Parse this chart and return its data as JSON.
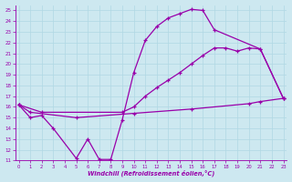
{
  "xlabel": "Windchill (Refroidissement éolien,°C)",
  "background_color": "#cde8f0",
  "line_color": "#9900aa",
  "grid_color": "#b0d8e4",
  "yticks": [
    11,
    12,
    13,
    14,
    15,
    16,
    17,
    18,
    19,
    20,
    21,
    22,
    23,
    24,
    25
  ],
  "xticks": [
    0,
    1,
    2,
    3,
    4,
    5,
    6,
    7,
    8,
    9,
    10,
    11,
    12,
    13,
    14,
    15,
    16,
    17,
    18,
    19,
    20,
    21,
    22,
    23
  ],
  "curve1_x": [
    0,
    1,
    2,
    3,
    5,
    6,
    7,
    8,
    9,
    10,
    11,
    12,
    13,
    14,
    15,
    16,
    17,
    21,
    23
  ],
  "curve1_y": [
    16.2,
    15.0,
    15.2,
    14.0,
    11.2,
    13.0,
    11.1,
    11.1,
    14.8,
    19.2,
    22.2,
    23.5,
    24.3,
    24.7,
    25.1,
    25.0,
    23.2,
    21.4,
    16.8
  ],
  "curve2_x": [
    0,
    2,
    9,
    10,
    11,
    12,
    13,
    14,
    15,
    16,
    17,
    18,
    19,
    20,
    21,
    23
  ],
  "curve2_y": [
    16.2,
    15.5,
    15.5,
    16.0,
    17.0,
    17.8,
    18.5,
    19.2,
    20.0,
    20.8,
    21.5,
    21.5,
    21.2,
    21.5,
    21.4,
    16.8
  ],
  "curve3_x": [
    0,
    1,
    5,
    10,
    15,
    20,
    21,
    23
  ],
  "curve3_y": [
    16.2,
    15.5,
    15.0,
    15.4,
    15.8,
    16.3,
    16.5,
    16.8
  ]
}
